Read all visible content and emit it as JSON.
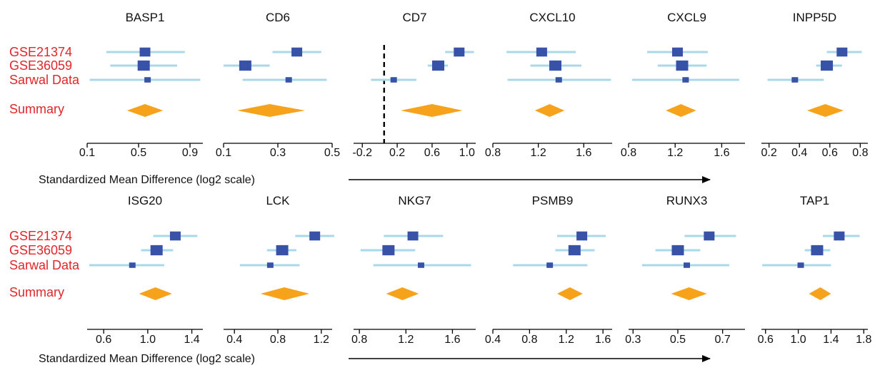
{
  "rows": [
    {
      "axis_caption": "Standardized Mean Difference (log2 scale)",
      "labels": [
        "GSE21374",
        "GSE36059",
        "Sarwal Data",
        "Summary"
      ],
      "panels": [
        {
          "gene": "BASP1",
          "ticks": [
            "0.1",
            "0.5",
            "0.9"
          ],
          "xlim": [
            0.1,
            1.0
          ],
          "studies": [
            {
              "est": 0.55,
              "lo": 0.25,
              "hi": 0.86
            },
            {
              "est": 0.54,
              "lo": 0.28,
              "hi": 0.8
            },
            {
              "est": 0.57,
              "lo": 0.12,
              "hi": 0.98
            }
          ],
          "summary": {
            "est": 0.55,
            "lo": 0.41,
            "hi": 0.69
          }
        },
        {
          "gene": "CD6",
          "ticks": [
            "0.1",
            "0.3",
            "0.5"
          ],
          "xlim": [
            0.1,
            0.5
          ],
          "studies": [
            {
              "est": 0.37,
              "lo": 0.28,
              "hi": 0.46
            },
            {
              "est": 0.18,
              "lo": 0.1,
              "hi": 0.27
            },
            {
              "est": 0.34,
              "lo": 0.17,
              "hi": 0.48
            }
          ],
          "summary": {
            "est": 0.27,
            "lo": 0.15,
            "hi": 0.4
          }
        },
        {
          "gene": "CD7",
          "ticks": [
            "-0.2",
            "0.2",
            "0.6",
            "1.0"
          ],
          "xlim": [
            -0.3,
            1.1
          ],
          "studies": [
            {
              "est": 0.91,
              "lo": 0.75,
              "hi": 1.08
            },
            {
              "est": 0.67,
              "lo": 0.55,
              "hi": 0.78
            },
            {
              "est": 0.16,
              "lo": -0.1,
              "hi": 0.42
            }
          ],
          "summary": {
            "est": 0.6,
            "lo": 0.24,
            "hi": 0.95
          },
          "null_line": 0.05
        },
        {
          "gene": "CXCL10",
          "ticks": [
            "0.8",
            "1.2",
            "1.6"
          ],
          "xlim": [
            0.8,
            1.85
          ],
          "studies": [
            {
              "est": 1.23,
              "lo": 0.92,
              "hi": 1.53
            },
            {
              "est": 1.35,
              "lo": 1.13,
              "hi": 1.58
            },
            {
              "est": 1.38,
              "lo": 0.93,
              "hi": 1.84
            }
          ],
          "summary": {
            "est": 1.3,
            "lo": 1.17,
            "hi": 1.43
          }
        },
        {
          "gene": "CXCL9",
          "ticks": [
            "0.8",
            "1.2",
            "1.6"
          ],
          "xlim": [
            0.8,
            1.8
          ],
          "studies": [
            {
              "est": 1.22,
              "lo": 0.96,
              "hi": 1.48
            },
            {
              "est": 1.26,
              "lo": 1.05,
              "hi": 1.47
            },
            {
              "est": 1.29,
              "lo": 0.83,
              "hi": 1.75
            }
          ],
          "summary": {
            "est": 1.25,
            "lo": 1.12,
            "hi": 1.38
          }
        },
        {
          "gene": "INPP5D",
          "ticks": [
            "0.2",
            "0.4",
            "0.6",
            "0.8"
          ],
          "xlim": [
            0.15,
            0.85
          ],
          "studies": [
            {
              "est": 0.68,
              "lo": 0.58,
              "hi": 0.81
            },
            {
              "est": 0.58,
              "lo": 0.51,
              "hi": 0.68
            },
            {
              "est": 0.37,
              "lo": 0.19,
              "hi": 0.56
            }
          ],
          "summary": {
            "est": 0.57,
            "lo": 0.45,
            "hi": 0.69
          }
        }
      ]
    },
    {
      "axis_caption": "Standardized Mean Difference (log2 scale)",
      "labels": [
        "GSE21374",
        "GSE36059",
        "Sarwal Data",
        "Summary"
      ],
      "panels": [
        {
          "gene": "ISG20",
          "ticks": [
            "0.6",
            "1.0",
            "1.4"
          ],
          "xlim": [
            0.45,
            1.5
          ],
          "studies": [
            {
              "est": 1.25,
              "lo": 1.05,
              "hi": 1.45
            },
            {
              "est": 1.08,
              "lo": 0.94,
              "hi": 1.23
            },
            {
              "est": 0.86,
              "lo": 0.47,
              "hi": 1.15
            }
          ],
          "summary": {
            "est": 1.07,
            "lo": 0.92,
            "hi": 1.22
          }
        },
        {
          "gene": "LCK",
          "ticks": [
            "0.4",
            "0.8",
            "1.2"
          ],
          "xlim": [
            0.3,
            1.3
          ],
          "studies": [
            {
              "est": 1.14,
              "lo": 0.96,
              "hi": 1.32
            },
            {
              "est": 0.84,
              "lo": 0.7,
              "hi": 0.97
            },
            {
              "est": 0.73,
              "lo": 0.45,
              "hi": 1.0
            }
          ],
          "summary": {
            "est": 0.86,
            "lo": 0.64,
            "hi": 1.09
          }
        },
        {
          "gene": "NKG7",
          "ticks": [
            "0.8",
            "1.2",
            "1.6"
          ],
          "xlim": [
            0.75,
            1.8
          ],
          "studies": [
            {
              "est": 1.26,
              "lo": 1.01,
              "hi": 1.52
            },
            {
              "est": 1.05,
              "lo": 0.81,
              "hi": 1.28
            },
            {
              "est": 1.33,
              "lo": 0.92,
              "hi": 1.76
            }
          ],
          "summary": {
            "est": 1.17,
            "lo": 1.03,
            "hi": 1.31
          }
        },
        {
          "gene": "PSMB9",
          "ticks": [
            "0.4",
            "0.8",
            "1.2",
            "1.6"
          ],
          "xlim": [
            0.4,
            1.7
          ],
          "studies": [
            {
              "est": 1.37,
              "lo": 1.1,
              "hi": 1.63
            },
            {
              "est": 1.29,
              "lo": 1.08,
              "hi": 1.51
            },
            {
              "est": 1.02,
              "lo": 0.62,
              "hi": 1.43
            }
          ],
          "summary": {
            "est": 1.24,
            "lo": 1.1,
            "hi": 1.38
          }
        },
        {
          "gene": "RUNX3",
          "ticks": [
            "0.3",
            "0.5",
            "0.7"
          ],
          "xlim": [
            0.28,
            0.8
          ],
          "studies": [
            {
              "est": 0.64,
              "lo": 0.53,
              "hi": 0.76
            },
            {
              "est": 0.5,
              "lo": 0.4,
              "hi": 0.6
            },
            {
              "est": 0.54,
              "lo": 0.34,
              "hi": 0.73
            }
          ],
          "summary": {
            "est": 0.55,
            "lo": 0.47,
            "hi": 0.63
          }
        },
        {
          "gene": "TAP1",
          "ticks": [
            "0.6",
            "1.0",
            "1.4",
            "1.8"
          ],
          "xlim": [
            0.55,
            1.85
          ],
          "studies": [
            {
              "est": 1.5,
              "lo": 1.3,
              "hi": 1.75
            },
            {
              "est": 1.23,
              "lo": 1.08,
              "hi": 1.39
            },
            {
              "est": 1.03,
              "lo": 0.56,
              "hi": 1.4
            }
          ],
          "summary": {
            "est": 1.27,
            "lo": 1.13,
            "hi": 1.4
          }
        }
      ]
    }
  ],
  "colors": {
    "study_label": "#e0262a",
    "square": "#3752a6",
    "ci_line": "#a8d8ea",
    "diamond": "#f7a21b",
    "axis": "#000000",
    "text": "#111111"
  },
  "chart_data": [
    {
      "type": "forest",
      "series_labels": [
        "GSE21374",
        "GSE36059",
        "Sarwal Data",
        "Summary"
      ],
      "xlabel": "Standardized Mean Difference (log2 scale)",
      "genes": [
        "BASP1",
        "CD6",
        "CD7",
        "CXCL10",
        "CXCL9",
        "INPP5D"
      ]
    },
    {
      "type": "forest",
      "series_labels": [
        "GSE21374",
        "GSE36059",
        "Sarwal Data",
        "Summary"
      ],
      "xlabel": "Standardized Mean Difference (log2 scale)",
      "genes": [
        "ISG20",
        "LCK",
        "NKG7",
        "PSMB9",
        "RUNX3",
        "TAP1"
      ]
    }
  ]
}
